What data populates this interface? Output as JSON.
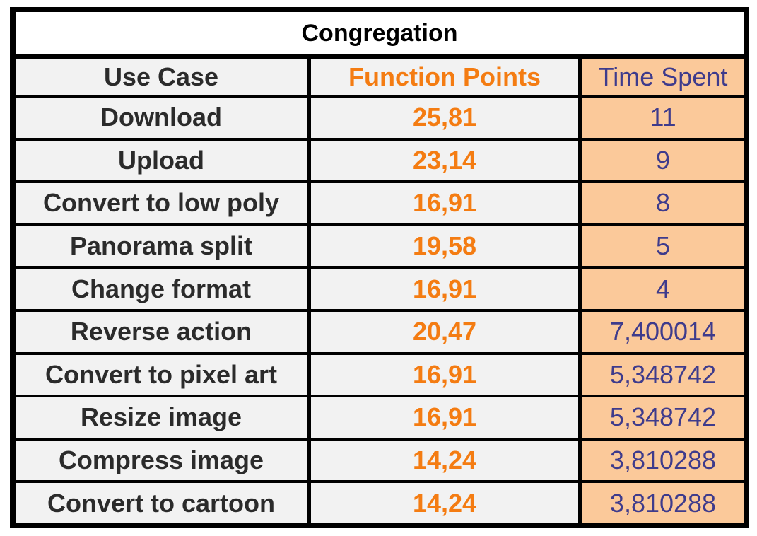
{
  "table": {
    "title": "Congregation",
    "headers": {
      "use_case": "Use Case",
      "function_points": "Function Points",
      "time_spent": "Time Spent"
    },
    "rows": [
      {
        "use_case": "Download",
        "function_points": "25,81",
        "time_spent": "11"
      },
      {
        "use_case": "Upload",
        "function_points": "23,14",
        "time_spent": "9"
      },
      {
        "use_case": "Convert to low poly",
        "function_points": "16,91",
        "time_spent": "8"
      },
      {
        "use_case": "Panorama split",
        "function_points": "19,58",
        "time_spent": "5"
      },
      {
        "use_case": "Change format",
        "function_points": "16,91",
        "time_spent": "4"
      },
      {
        "use_case": "Reverse action",
        "function_points": "20,47",
        "time_spent": "7,400014"
      },
      {
        "use_case": "Convert to pixel art",
        "function_points": "16,91",
        "time_spent": "5,348742"
      },
      {
        "use_case": "Resize image",
        "function_points": "16,91",
        "time_spent": "5,348742"
      },
      {
        "use_case": "Compress image",
        "function_points": "14,24",
        "time_spent": "3,810288"
      },
      {
        "use_case": "Convert to cartoon",
        "function_points": "14,24",
        "time_spent": "3,810288"
      }
    ]
  },
  "colors": {
    "border": "#000000",
    "cell_background": "#f2f2f2",
    "time_background": "#fbc99a",
    "function_points_text": "#f47c12",
    "time_text": "#3e3b8c"
  }
}
